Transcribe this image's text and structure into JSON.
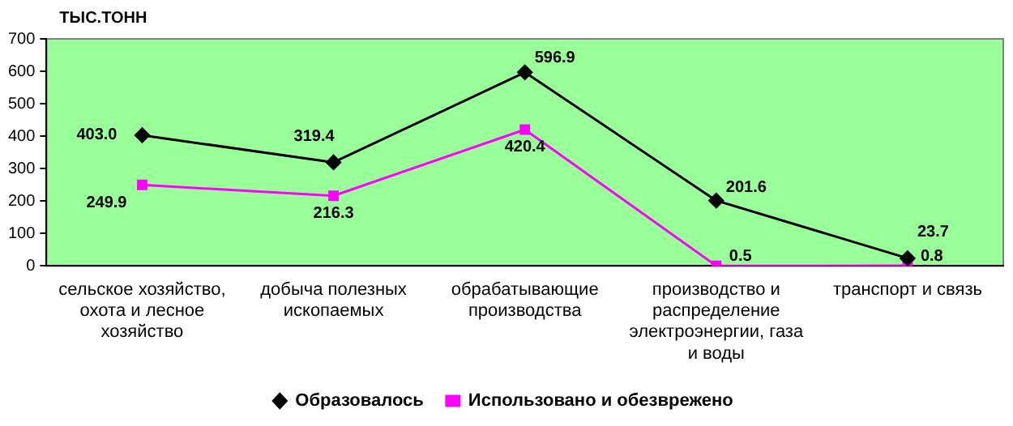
{
  "chart_data": {
    "type": "line",
    "ylabel": "ТЫС.ТОНН",
    "categories": [
      "сельское хозяйство, охота и лесное хозяйство",
      "добыча полезных ископаемых",
      "обрабатывающие производства",
      "производство и распределение электроэнергии, газа и воды",
      "транспорт и связь"
    ],
    "series": [
      {
        "name": "Образовалось",
        "color": "#000000",
        "marker": "diamond",
        "values": [
          403.0,
          319.4,
          596.9,
          201.6,
          23.7
        ],
        "value_labels": [
          "403.0",
          "319.4",
          "596.9",
          "201.6",
          "23.7"
        ]
      },
      {
        "name": "Использовано и обезврежено",
        "color": "#ff00ff",
        "marker": "square",
        "values": [
          249.9,
          216.3,
          420.4,
          0.5,
          0.8
        ],
        "value_labels": [
          "249.9",
          "216.3",
          "420.4",
          "0.5",
          "0.8"
        ]
      }
    ],
    "ylim": [
      0,
      700
    ],
    "yticks": [
      0,
      100,
      200,
      300,
      400,
      500,
      600,
      700
    ],
    "grid": false,
    "legend": "bottom"
  }
}
